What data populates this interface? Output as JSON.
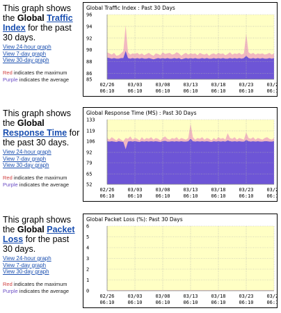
{
  "sections": [
    {
      "intro_before": "This graph shows the ",
      "intro_bold": "Global ",
      "intro_link": "Traffic Index",
      "intro_after": " for the past 30 days.",
      "links": [
        "View 24-hour graph",
        "View 7-day graph",
        "View 30-day graph"
      ],
      "legend_red": "Red",
      "legend_red_text": " indicates the maximum",
      "legend_purple": "Purple",
      "legend_purple_text": " indicates the average"
    },
    {
      "intro_before": "This graph shows the ",
      "intro_bold": "Global ",
      "intro_link": "Response Time",
      "intro_after": " for the past 30 days.",
      "links": [
        "View 24-hour graph",
        "View 7-day graph",
        "View 30-day graph"
      ],
      "legend_red": "Red",
      "legend_red_text": " indicates the maximum",
      "legend_purple": "Purple",
      "legend_purple_text": " indicates the average"
    },
    {
      "intro_before": "This graph shows the ",
      "intro_bold": "Global ",
      "intro_link": "Packet Loss",
      "intro_after": " for the past 30 days.",
      "links": [
        "View 24-hour graph",
        "View 7-day graph",
        "View 30-day graph"
      ],
      "legend_red": "Red",
      "legend_red_text": " indicates the maximum",
      "legend_purple": "Purple",
      "legend_purple_text": " indicates the average"
    }
  ],
  "colors": {
    "plot_bg": "#ffffc4",
    "max_fill": "#f2b8c0",
    "avg_fill": "#6d55d6",
    "link": "#1a4fb0"
  },
  "chart_data": [
    {
      "type": "area",
      "title": "Global Traffic Index : Past 30 Days",
      "x_ticks": [
        "02/26\n06:10",
        "03/03\n06:10",
        "03/08\n06:10",
        "03/13\n06:10",
        "03/18\n06:10",
        "03/23\n06:10",
        "03/28\n06:10"
      ],
      "y_ticks": [
        85,
        86,
        88,
        90,
        92,
        94,
        96
      ],
      "ylim": [
        85,
        96
      ],
      "series": [
        {
          "values": [
            89.6,
            89.4,
            89.2,
            89.5,
            89.0,
            89.1,
            89.4,
            89.8,
            94.2,
            89.6,
            89.2,
            89.4,
            89.3,
            89.5,
            89.2,
            89.4,
            89.1,
            89.3,
            89.5,
            89.2,
            89.0,
            89.4,
            89.3,
            89.1,
            89.6,
            89.3,
            89.4,
            89.5,
            89.2,
            89.3,
            89.6,
            89.4,
            89.0,
            89.3,
            89.5,
            89.2,
            89.4,
            89.3,
            89.4,
            89.1,
            89.5,
            89.3,
            89.2,
            89.4,
            89.0,
            89.3,
            89.4,
            89.2,
            89.5,
            89.3,
            89.4,
            89.1,
            89.3,
            89.6,
            89.2,
            89.4,
            89.3,
            89.5,
            89.2,
            89.4,
            92.8,
            89.6,
            89.3,
            89.5,
            89.2,
            89.4,
            89.3,
            89.4,
            89.2,
            89.3,
            89.5,
            89.2,
            89.4
          ]
        },
        {
          "values": [
            88.7,
            88.6,
            88.5,
            88.6,
            88.5,
            88.5,
            88.6,
            88.6,
            89.8,
            88.6,
            88.5,
            88.6,
            88.5,
            88.6,
            88.5,
            88.6,
            88.5,
            88.5,
            88.6,
            88.5,
            88.4,
            88.5,
            88.6,
            88.5,
            88.6,
            88.5,
            88.6,
            88.5,
            88.5,
            88.6,
            88.5,
            88.6,
            88.4,
            88.5,
            88.6,
            88.5,
            88.6,
            88.5,
            88.6,
            88.5,
            88.5,
            88.6,
            88.5,
            88.6,
            88.5,
            88.5,
            88.6,
            88.5,
            88.6,
            88.5,
            88.6,
            88.5,
            88.5,
            88.6,
            88.5,
            88.6,
            88.5,
            88.6,
            88.5,
            88.6,
            89.0,
            88.6,
            88.5,
            88.6,
            88.5,
            88.6,
            88.5,
            88.6,
            88.5,
            88.5,
            88.6,
            88.5,
            88.6
          ]
        }
      ]
    },
    {
      "type": "area",
      "title": "Global Response Time (MS) : Past 30 Days",
      "x_ticks": [
        "02/26\n06:10",
        "03/03\n06:10",
        "03/08\n06:10",
        "03/13\n06:10",
        "03/18\n06:10",
        "03/23\n06:10",
        "03/28\n06:10"
      ],
      "y_ticks": [
        52,
        65,
        79,
        92,
        106,
        119,
        133
      ],
      "ylim": [
        52,
        133
      ],
      "series": [
        {
          "values": [
            110,
            108,
            111,
            109,
            107,
            110,
            108,
            106,
            110,
            109,
            112,
            108,
            110,
            109,
            107,
            111,
            108,
            110,
            109,
            111,
            108,
            110,
            109,
            107,
            110,
            112,
            109,
            108,
            110,
            109,
            111,
            108,
            110,
            109,
            108,
            110,
            128,
            111,
            108,
            110,
            109,
            111,
            108,
            110,
            109,
            107,
            110,
            108,
            111,
            109,
            110,
            108,
            116,
            110,
            109,
            111,
            108,
            110,
            109,
            108,
            117,
            110,
            109,
            111,
            108,
            110,
            109,
            108,
            110,
            111,
            109,
            108,
            110
          ]
        },
        {
          "values": [
            106,
            105.5,
            106,
            105.5,
            105,
            106,
            105.5,
            105,
            96,
            105.5,
            106,
            105.5,
            106,
            105.5,
            105,
            106,
            105.5,
            106,
            105.5,
            106,
            105.5,
            106,
            105.5,
            105,
            106,
            106.5,
            105.5,
            105.5,
            106,
            105.5,
            106,
            105.5,
            106,
            105.5,
            105.5,
            106,
            109,
            106,
            105.5,
            106,
            105.5,
            106,
            105.5,
            106,
            105.5,
            105,
            106,
            105.5,
            106,
            105.5,
            106,
            105.5,
            107,
            106,
            105.5,
            106,
            105.5,
            106,
            105.5,
            105.5,
            107.5,
            106,
            105.5,
            106,
            105.5,
            106,
            105.5,
            105.5,
            106,
            106,
            105.5,
            105.5,
            106
          ]
        }
      ]
    },
    {
      "type": "area",
      "title": "Global Packet Loss (%): Past 30 Days",
      "x_ticks": [
        "02/26\n06:10",
        "03/03\n06:10",
        "03/08\n06:10",
        "03/13\n06:10",
        "03/18\n06:10",
        "03/23\n06:10",
        "03/28\n06:10"
      ],
      "y_ticks": [
        0,
        1,
        2,
        3,
        4,
        5,
        6
      ],
      "ylim": [
        0,
        6
      ],
      "series": [
        {
          "values": [
            0.05,
            0.05,
            0.05,
            0.05,
            0.05,
            0.05,
            0.05,
            0.05,
            0.05,
            0.05
          ]
        },
        {
          "values": [
            0.02,
            0.02,
            0.02,
            0.02,
            0.02,
            0.02,
            0.02,
            0.02,
            0.02,
            0.02
          ]
        }
      ]
    }
  ]
}
